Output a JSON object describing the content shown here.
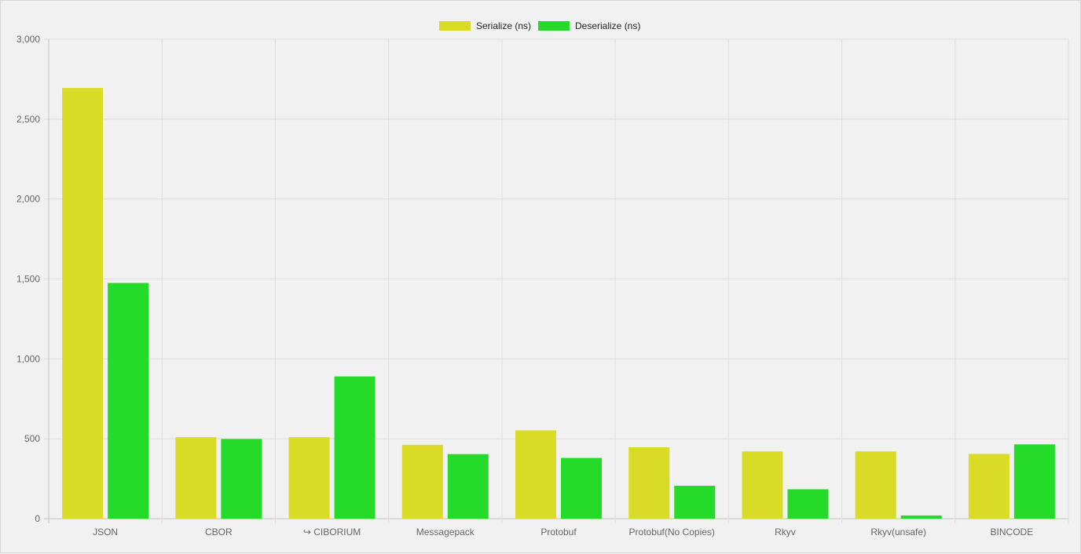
{
  "chart_data": {
    "type": "bar",
    "categories": [
      "JSON",
      "CBOR",
      "↪ CIBORIUM",
      "Messagepack",
      "Protobuf",
      "Protobuf(No Copies)",
      "Rkyv",
      "Rkyv(unsafe)",
      "BINCODE"
    ],
    "series": [
      {
        "name": "Serialize (ns)",
        "color": "#d9db26",
        "values": [
          2695,
          510,
          510,
          462,
          553,
          447,
          421,
          421,
          405
        ]
      },
      {
        "name": "Deserialize (ns)",
        "color": "#24db2a",
        "values": [
          1475,
          499,
          890,
          404,
          380,
          206,
          184,
          20,
          465
        ]
      }
    ],
    "yticks": [
      "0",
      "500",
      "1,000",
      "1,500",
      "2,000",
      "2,500",
      "3,000"
    ],
    "ylim": [
      0,
      3000
    ],
    "grid": true,
    "legend_position": "top-center",
    "title": "",
    "xlabel": "",
    "ylabel": ""
  }
}
